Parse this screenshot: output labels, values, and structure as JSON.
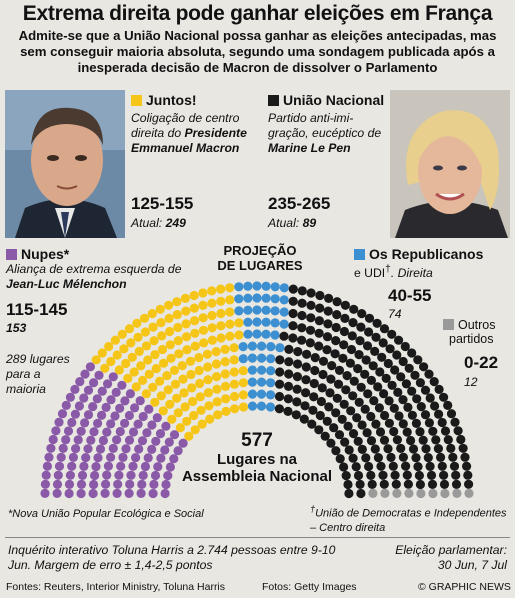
{
  "title": "Extrema direita pode ganhar eleições em França",
  "subtitle": "Admite-se que a União Nacional possa ganhar as eleições antecipadas, mas sem conseguir maioria absoluta, segundo uma sondagem publicada após a inesperada decisão de Macron de dissolver o Parlamento",
  "parties": {
    "juntos": {
      "name": "Juntos!",
      "desc_plain": "Coligação de centro direita do",
      "desc_bold": "Presidente Emmanuel Macron",
      "range": "125-155",
      "current_label": "Atual:",
      "current": "249",
      "color": "#f5c518"
    },
    "un": {
      "name": "União Nacional",
      "desc_plain": "Partido anti-imi-gração, eucéptico de",
      "desc_bold": "Marine Le Pen",
      "range": "235-265",
      "current_label": "Atual:",
      "current": "89",
      "color": "#1a1a1a"
    },
    "nupes": {
      "name": "Nupes*",
      "desc_plain": "Aliança de extrema esquerda de",
      "desc_bold": "Jean-Luc Mélenchon",
      "range": "115-145",
      "current": "153",
      "color": "#8a5aa8"
    },
    "lr": {
      "name": "Os Republicanos",
      "name2": "e UDI",
      "dagger": "†",
      "desc_plain": ". Direita",
      "range": "40-55",
      "current": "74",
      "color": "#3c8fd0"
    },
    "outros": {
      "name1": "Outros",
      "name2": "partidos",
      "range": "0-22",
      "current": "12",
      "color": "#9a9a9a"
    }
  },
  "majority": {
    "line1": "289 lugares",
    "line2": "para a",
    "line3": "maioria"
  },
  "projection_label": {
    "line1": "PROJEÇÃO",
    "line2": "DE LUGARES"
  },
  "total": {
    "number": "577",
    "line1": "Lugares na",
    "line2": "Assembleia Nacional"
  },
  "footnotes": {
    "nupes": "*Nova União Popular Ecológica e Social",
    "udi_dagger": "†",
    "udi": "União de Democratas e Independentes – Centro direita"
  },
  "poll": "Inquérito interativo Toluna Harris a 2.744 pessoas entre 9-10 Jun. Margem de erro ± 1,4-2,5 pontos",
  "election": {
    "line1": "Eleição parlamentar:",
    "line2": "30 Jun,  7 Jul"
  },
  "sources": "Fontes: Reuters, Interior Ministry, Toluna Harris",
  "photos": "Fotos: Getty Images",
  "credit": "© GRAPHIC NEWS",
  "chart_data": {
    "type": "hemicycle",
    "total_seats": 577,
    "majority": 289,
    "series": [
      {
        "name": "Nupes",
        "values": [
          130
        ],
        "color": "#8a5aa8"
      },
      {
        "name": "Juntos!",
        "values": [
          140
        ],
        "color": "#f5c518"
      },
      {
        "name": "Os Republicanos e UDI",
        "values": [
          48
        ],
        "color": "#3c8fd0"
      },
      {
        "name": "União Nacional",
        "values": [
          250
        ],
        "color": "#1a1a1a"
      },
      {
        "name": "Outros partidos",
        "values": [
          9
        ],
        "color": "#9a9a9a"
      }
    ]
  }
}
